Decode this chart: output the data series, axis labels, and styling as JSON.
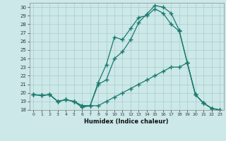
{
  "xlabel": "Humidex (Indice chaleur)",
  "bg_color": "#cce8e8",
  "line_color": "#1a7a6e",
  "grid_color": "#aacccc",
  "xlim": [
    -0.5,
    23.5
  ],
  "ylim": [
    18,
    30.5
  ],
  "xticks": [
    0,
    1,
    2,
    3,
    4,
    5,
    6,
    7,
    8,
    9,
    10,
    11,
    12,
    13,
    14,
    15,
    16,
    17,
    18,
    19,
    20,
    21,
    22,
    23
  ],
  "yticks": [
    18,
    19,
    20,
    21,
    22,
    23,
    24,
    25,
    26,
    27,
    28,
    29,
    30
  ],
  "line1_x": [
    0,
    1,
    2,
    3,
    4,
    5,
    6,
    7,
    8,
    9,
    10,
    11,
    12,
    13,
    14,
    15,
    16,
    17,
    18,
    19,
    20,
    21,
    22,
    23
  ],
  "line1_y": [
    19.8,
    19.7,
    19.8,
    19.0,
    19.2,
    19.0,
    18.3,
    18.5,
    18.5,
    19.0,
    19.5,
    20.0,
    20.5,
    21.0,
    21.5,
    22.0,
    22.5,
    23.0,
    23.0,
    23.5,
    19.8,
    18.8,
    18.2,
    18.0
  ],
  "line2_x": [
    0,
    1,
    2,
    3,
    4,
    5,
    6,
    7,
    8,
    9,
    10,
    11,
    12,
    13,
    14,
    15,
    16,
    17,
    18,
    19,
    20,
    21,
    22,
    23
  ],
  "line2_y": [
    19.8,
    19.7,
    19.8,
    19.0,
    19.2,
    19.0,
    18.5,
    18.5,
    21.2,
    23.3,
    26.5,
    26.2,
    27.5,
    28.8,
    29.0,
    29.8,
    29.3,
    28.0,
    27.2,
    23.5,
    19.8,
    18.8,
    18.2,
    18.0
  ],
  "line3_x": [
    0,
    1,
    2,
    3,
    4,
    5,
    6,
    7,
    8,
    9,
    10,
    11,
    12,
    13,
    14,
    15,
    16,
    17,
    18,
    19,
    20,
    21,
    22,
    23
  ],
  "line3_y": [
    19.8,
    19.7,
    19.8,
    19.0,
    19.2,
    19.0,
    18.5,
    18.5,
    21.0,
    21.5,
    24.0,
    24.8,
    26.2,
    28.2,
    29.2,
    30.2,
    30.0,
    29.3,
    27.3,
    23.5,
    19.8,
    18.8,
    18.2,
    18.0
  ]
}
